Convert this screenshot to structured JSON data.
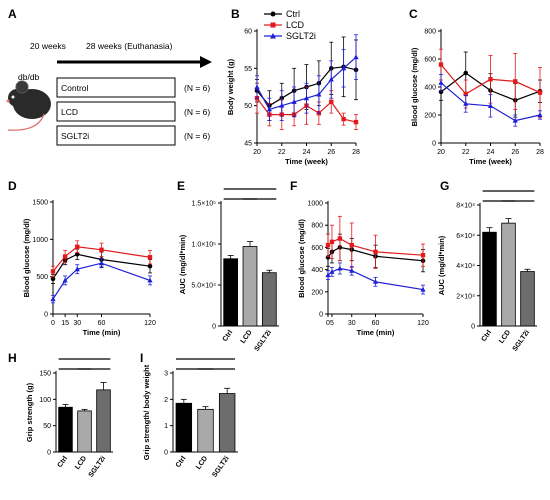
{
  "colors": {
    "ctrl": "#000000",
    "lcd": "#e31a1c",
    "sglt2i": "#1f1fd6",
    "bar_ctrl": "#000000",
    "bar_lcd": "#a9a9a9",
    "bar_sglt2i": "#6d6d6d"
  },
  "legend": [
    "Ctrl",
    "LCD",
    "SGLT2i"
  ],
  "schematic": {
    "label": "A",
    "timeline_start": "20 weeks",
    "timeline_end": "28 weeks (Euthanasia)",
    "mouse_label": "db/db",
    "groups": [
      {
        "name": "Control",
        "n": "(N = 6)"
      },
      {
        "name": "LCD",
        "n": "(N = 6)"
      },
      {
        "name": "SGLT2i",
        "n": "(N = 6)"
      }
    ]
  },
  "chart_data": [
    {
      "id": "B",
      "panel_label": "B",
      "type": "line",
      "xlabel": "Time (week)",
      "ylabel": "Body weight (g)",
      "xlim": [
        20,
        28
      ],
      "ylim": [
        45,
        60
      ],
      "xticks": [
        20,
        22,
        24,
        26,
        28
      ],
      "yticks": [
        45,
        50,
        55,
        60
      ],
      "series": [
        {
          "name": "Ctrl",
          "color_key": "ctrl",
          "marker": "circle",
          "points": [
            [
              20,
              52
            ],
            [
              21,
              50
            ],
            [
              22,
              51
            ],
            [
              23,
              52
            ],
            [
              24,
              52.5
            ],
            [
              25,
              53
            ],
            [
              26,
              55
            ],
            [
              27,
              55.2
            ],
            [
              28,
              54.8
            ]
          ],
          "err": [
            1.5,
            2,
            2,
            3,
            3,
            3,
            3.5,
            4,
            4
          ]
        },
        {
          "name": "LCD",
          "color_key": "lcd",
          "marker": "square",
          "points": [
            [
              20,
              51
            ],
            [
              21,
              48.8
            ],
            [
              22,
              48.8
            ],
            [
              23,
              48.8
            ],
            [
              24,
              50
            ],
            [
              25,
              49
            ],
            [
              26,
              50.5
            ],
            [
              27,
              48.2
            ],
            [
              28,
              47.8
            ]
          ],
          "err": [
            2,
            1.5,
            2,
            1.5,
            2.5,
            1.5,
            1.5,
            0.8,
            1
          ]
        },
        {
          "name": "SGLT2i",
          "color_key": "sglt2i",
          "marker": "triangle",
          "points": [
            [
              20,
              52.5
            ],
            [
              21,
              49.5
            ],
            [
              22,
              50
            ],
            [
              23,
              50.5
            ],
            [
              24,
              51
            ],
            [
              25,
              51.5
            ],
            [
              26,
              53.5
            ],
            [
              27,
              55
            ],
            [
              28,
              56.5
            ]
          ],
          "err": [
            1.5,
            1.5,
            2,
            2,
            2,
            2.5,
            2.5,
            2.5,
            3
          ]
        }
      ]
    },
    {
      "id": "C",
      "panel_label": "C",
      "type": "line",
      "xlabel": "Time (week)",
      "ylabel": "Blood glucose (mg/dl)",
      "xlim": [
        20,
        28
      ],
      "ylim": [
        0,
        800
      ],
      "xticks": [
        20,
        22,
        24,
        26,
        28
      ],
      "yticks": [
        0,
        200,
        400,
        600,
        800
      ],
      "series": [
        {
          "name": "Ctrl",
          "color_key": "ctrl",
          "marker": "circle",
          "points": [
            [
              20,
              365
            ],
            [
              22,
              500
            ],
            [
              24,
              375
            ],
            [
              26,
              305
            ],
            [
              28,
              370
            ]
          ],
          "err": [
            60,
            150,
            120,
            120,
            80
          ]
        },
        {
          "name": "LCD",
          "color_key": "lcd",
          "marker": "square",
          "points": [
            [
              20,
              560
            ],
            [
              22,
              350
            ],
            [
              24,
              455
            ],
            [
              26,
              440
            ],
            [
              28,
              360
            ]
          ],
          "err": [
            110,
            100,
            170,
            200,
            180
          ]
        },
        {
          "name": "SGLT2i",
          "color_key": "sglt2i",
          "marker": "triangle",
          "points": [
            [
              20,
              430
            ],
            [
              22,
              280
            ],
            [
              24,
              265
            ],
            [
              26,
              160
            ],
            [
              28,
              200
            ]
          ],
          "err": [
            60,
            60,
            80,
            40,
            30
          ]
        }
      ]
    },
    {
      "id": "D",
      "panel_label": "D",
      "type": "line",
      "xlabel": "Time (min)",
      "ylabel": "Blood glucose (mg/dl)",
      "xlim": [
        0,
        120
      ],
      "ylim": [
        0,
        1500
      ],
      "xticks": [
        0,
        15,
        30,
        60,
        120
      ],
      "yticks": [
        0,
        500,
        1000,
        1500
      ],
      "series": [
        {
          "name": "Ctrl",
          "color_key": "ctrl",
          "marker": "circle",
          "points": [
            [
              0,
              470
            ],
            [
              15,
              720
            ],
            [
              30,
              800
            ],
            [
              60,
              730
            ],
            [
              120,
              640
            ]
          ],
          "err": [
            60,
            60,
            70,
            100,
            90
          ]
        },
        {
          "name": "LCD",
          "color_key": "lcd",
          "marker": "square",
          "points": [
            [
              0,
              570
            ],
            [
              15,
              770
            ],
            [
              30,
              900
            ],
            [
              60,
              860
            ],
            [
              120,
              760
            ]
          ],
          "err": [
            70,
            80,
            80,
            90,
            90
          ]
        },
        {
          "name": "SGLT2i",
          "color_key": "sglt2i",
          "marker": "triangle",
          "points": [
            [
              0,
              200
            ],
            [
              15,
              450
            ],
            [
              30,
              600
            ],
            [
              60,
              680
            ],
            [
              120,
              450
            ]
          ],
          "err": [
            50,
            60,
            60,
            60,
            60
          ]
        }
      ]
    },
    {
      "id": "E",
      "panel_label": "E",
      "type": "bar",
      "ylabel": "AUC (mg/dl*min)",
      "ylim": [
        0,
        150000
      ],
      "ytick_labels": [
        "0",
        "5.0×10⁴",
        "1.0×10⁵",
        "1.5×10⁵"
      ],
      "categories": [
        "Ctrl",
        "LCD",
        "SGLT2i"
      ],
      "values": [
        82000,
        97000,
        65000
      ],
      "err": [
        4000,
        6000,
        3000
      ],
      "sig_pairs": [
        [
          0,
          2
        ],
        [
          0,
          1
        ],
        [
          1,
          2
        ]
      ]
    },
    {
      "id": "F",
      "panel_label": "F",
      "type": "line",
      "xlabel": "Time (min)",
      "ylabel": "Blood glucose (mg/dl)",
      "xlim": [
        0,
        120
      ],
      "ylim": [
        0,
        1000
      ],
      "xticks": [
        0,
        5,
        30,
        60,
        120
      ],
      "yticks": [
        0,
        200,
        400,
        600,
        800,
        1000
      ],
      "series": [
        {
          "name": "Ctrl",
          "color_key": "ctrl",
          "marker": "circle",
          "points": [
            [
              0,
              510
            ],
            [
              5,
              560
            ],
            [
              15,
              600
            ],
            [
              30,
              580
            ],
            [
              60,
              520
            ],
            [
              120,
              480
            ]
          ],
          "err": [
            80,
            100,
            120,
            100,
            100,
            100
          ]
        },
        {
          "name": "LCD",
          "color_key": "lcd",
          "marker": "square",
          "points": [
            [
              0,
              620
            ],
            [
              5,
              650
            ],
            [
              15,
              680
            ],
            [
              30,
              620
            ],
            [
              60,
              560
            ],
            [
              120,
              530
            ]
          ],
          "err": [
            100,
            150,
            200,
            200,
            150,
            100
          ]
        },
        {
          "name": "SGLT2i",
          "color_key": "sglt2i",
          "marker": "triangle",
          "points": [
            [
              0,
              350
            ],
            [
              5,
              380
            ],
            [
              15,
              410
            ],
            [
              30,
              390
            ],
            [
              60,
              290
            ],
            [
              120,
              220
            ]
          ],
          "err": [
            40,
            40,
            50,
            40,
            40,
            40
          ]
        }
      ]
    },
    {
      "id": "G",
      "panel_label": "G",
      "type": "bar",
      "ylabel": "AUC (mg/dl*min)",
      "ylim": [
        0,
        80000
      ],
      "ytick_labels": [
        "0",
        "2×10⁴",
        "4×10⁴",
        "6×10⁴",
        "8×10⁴"
      ],
      "categories": [
        "Ctrl",
        "LCD",
        "SGLT2i"
      ],
      "values": [
        62000,
        68000,
        36000
      ],
      "err": [
        3000,
        3000,
        1500
      ],
      "sig_pairs": [
        [
          0,
          2
        ],
        [
          0,
          1
        ],
        [
          1,
          2
        ]
      ]
    },
    {
      "id": "H",
      "panel_label": "H",
      "type": "bar",
      "ylabel": "Grip strength (g)",
      "ylim": [
        0,
        150
      ],
      "ytick_labels": [
        "0",
        "50",
        "100",
        "150"
      ],
      "categories": [
        "Ctrl",
        "LCD",
        "SGLT2i"
      ],
      "values": [
        85,
        78,
        118
      ],
      "err": [
        5,
        3,
        14
      ],
      "sig_pairs": [
        [
          0,
          2
        ],
        [
          0,
          1
        ],
        [
          1,
          2
        ]
      ]
    },
    {
      "id": "I",
      "panel_label": "I",
      "type": "bar",
      "ylabel": "Grip strength/ body weight",
      "ylim": [
        0,
        3
      ],
      "ytick_labels": [
        "0",
        "1",
        "2",
        "3"
      ],
      "categories": [
        "Ctrl",
        "LCD",
        "SGLT2i"
      ],
      "values": [
        1.85,
        1.62,
        2.22
      ],
      "err": [
        0.15,
        0.1,
        0.2
      ],
      "sig_pairs": [
        [
          0,
          2
        ],
        [
          0,
          1
        ],
        [
          1,
          2
        ]
      ]
    }
  ]
}
